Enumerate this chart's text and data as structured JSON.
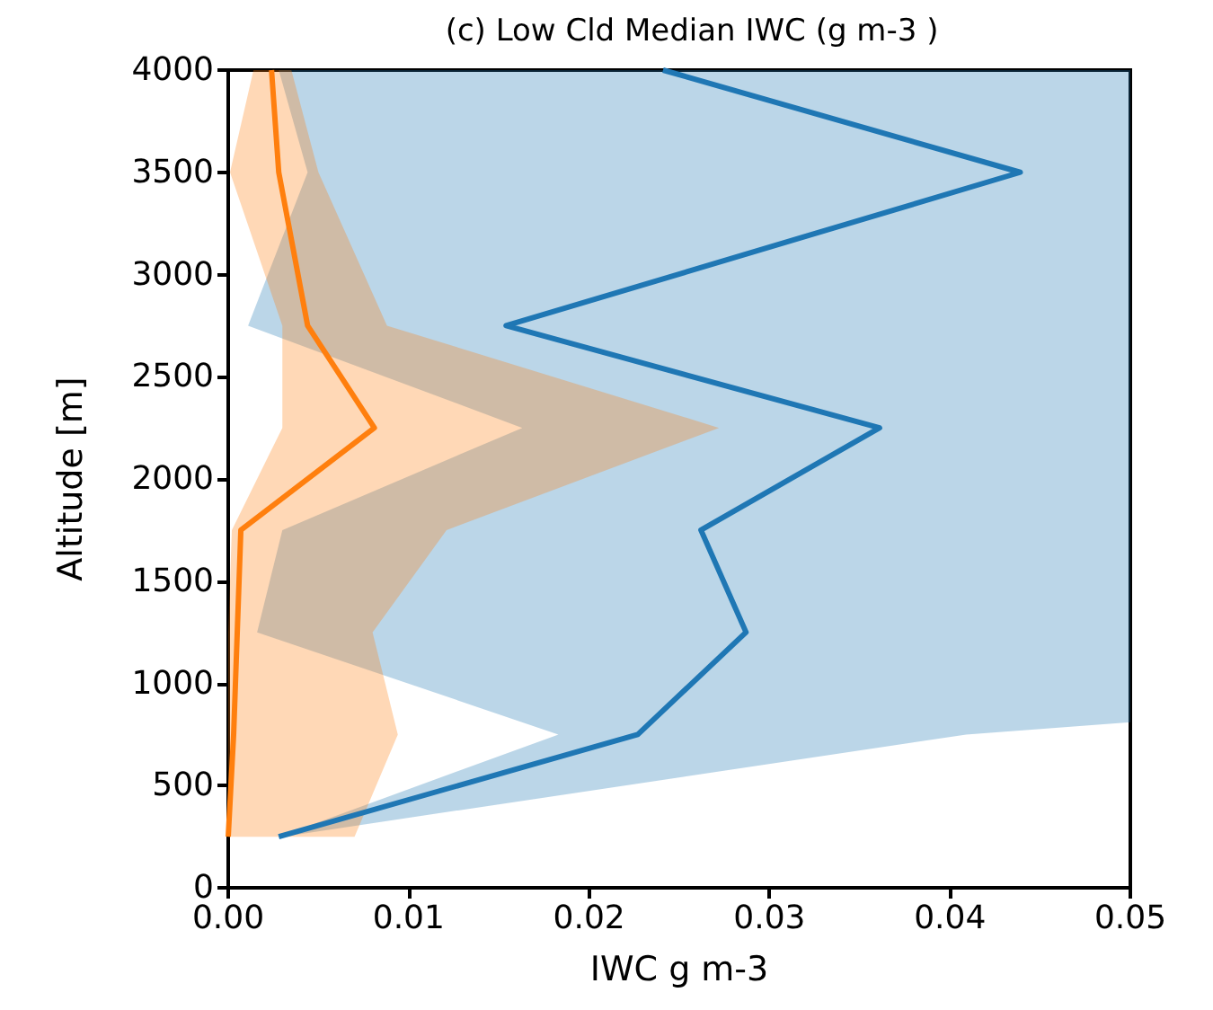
{
  "chart_data": {
    "type": "line",
    "title": "(c) Low Cld Median IWC (g m-3 )",
    "xlabel": "IWC g m-3",
    "ylabel": "Altitude [m]",
    "series": [
      {
        "type": "area",
        "color": "#1f77b4",
        "x": [
          0.0028,
          0.0183,
          0.0016,
          0.003,
          0.0163,
          0.0011,
          0.0044,
          0.0028,
          0.05,
          0.05,
          0.05,
          0.05,
          0.05,
          0.05,
          0.05,
          0.0409,
          0.003
        ],
        "values": [
          250,
          750,
          1250,
          1750,
          2250,
          2750,
          3500,
          4000,
          4000,
          3500,
          2750,
          2250,
          1750,
          1250,
          810,
          750,
          250
        ]
      },
      {
        "type": "area",
        "color": "#ff7f0e",
        "x": [
          0.0,
          0.0,
          0.0,
          0.0002,
          0.003,
          0.003,
          0.0001,
          0.0014,
          0.0035,
          0.005,
          0.0088,
          0.0272,
          0.0121,
          0.008,
          0.0094,
          0.007
        ],
        "values": [
          250,
          750,
          1250,
          1750,
          2250,
          2750,
          3500,
          4000,
          4000,
          3500,
          2750,
          2250,
          1750,
          1250,
          750,
          250
        ]
      },
      {
        "color": "#1f77b4",
        "x": [
          0.0028,
          0.0227,
          0.0287,
          0.0262,
          0.0361,
          0.0154,
          0.0439,
          0.0241
        ],
        "values": [
          250,
          750,
          1250,
          1750,
          2250,
          2750,
          3500,
          4000
        ]
      },
      {
        "color": "#ff7f0e",
        "x": [
          0.0,
          0.0003,
          0.0005,
          0.0007,
          0.0081,
          0.0044,
          0.0028,
          0.0024
        ],
        "values": [
          250,
          750,
          1250,
          1750,
          2250,
          2750,
          3500,
          4000
        ]
      }
    ],
    "xlim": [
      0,
      0.05
    ],
    "xticks": [
      {
        "value": 0,
        "label": "0.00"
      },
      {
        "value": 0.01,
        "label": "0.01"
      },
      {
        "value": 0.02,
        "label": "0.02"
      },
      {
        "value": 0.03,
        "label": "0.03"
      },
      {
        "value": 0.04,
        "label": "0.04"
      },
      {
        "value": 0.05,
        "label": "0.05"
      }
    ],
    "ylim": [
      0,
      4000
    ],
    "yticks": [
      0,
      500,
      1000,
      1500,
      2000,
      2500,
      3000,
      3500,
      4000
    ],
    "grid": false,
    "marker": "none",
    "line_style": "solid"
  }
}
